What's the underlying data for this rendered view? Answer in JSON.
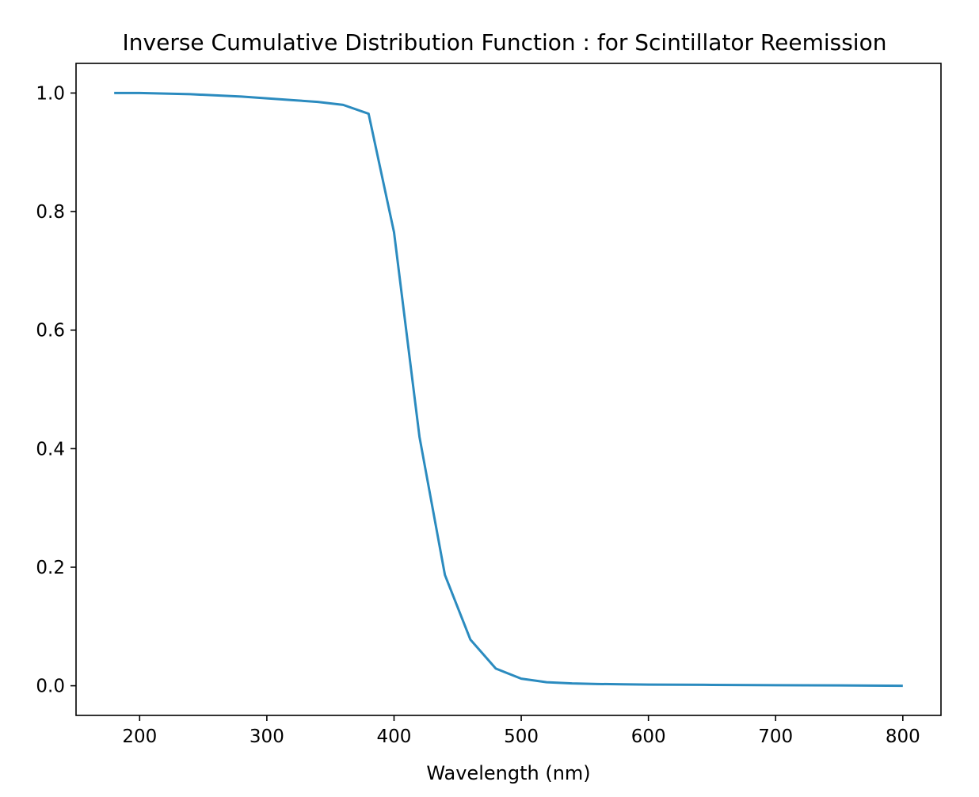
{
  "chart_data": {
    "type": "line",
    "title": "Inverse Cumulative Distribution Function : for Scintillator Reemission",
    "xlabel": "Wavelength (nm)",
    "ylabel": "",
    "xlim": [
      150,
      830
    ],
    "ylim": [
      -0.05,
      1.05
    ],
    "xticks": [
      200,
      300,
      400,
      500,
      600,
      700,
      800
    ],
    "yticks": [
      0.0,
      0.2,
      0.4,
      0.6,
      0.8,
      1.0
    ],
    "xtick_labels": [
      "200",
      "300",
      "400",
      "500",
      "600",
      "700",
      "800"
    ],
    "ytick_labels": [
      "0.0",
      "0.2",
      "0.4",
      "0.6",
      "0.8",
      "1.0"
    ],
    "grid": false,
    "color": "#2b8bbf",
    "series": [
      {
        "x": [
          180,
          200,
          220,
          240,
          260,
          280,
          300,
          320,
          340,
          360,
          380,
          400,
          420,
          440,
          460,
          480,
          500,
          520,
          540,
          560,
          580,
          600,
          650,
          700,
          750,
          800
        ],
        "y": [
          1.0,
          1.0,
          0.999,
          0.998,
          0.996,
          0.994,
          0.991,
          0.988,
          0.985,
          0.98,
          0.965,
          0.765,
          0.42,
          0.187,
          0.078,
          0.029,
          0.012,
          0.006,
          0.004,
          0.003,
          0.0025,
          0.002,
          0.0015,
          0.001,
          0.0006,
          0.0
        ]
      }
    ]
  }
}
